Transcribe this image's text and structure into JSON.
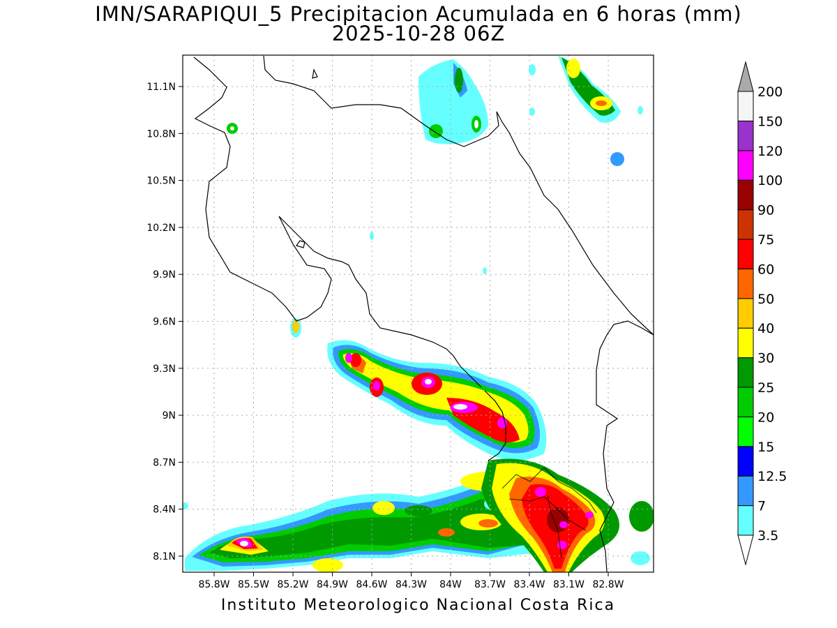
{
  "title": {
    "line1": "IMN/SARAPIQUI_5 Precipitacion Acumulada en 6 horas (mm)",
    "line2": "2025-10-28 06Z"
  },
  "footer": "Instituto Meteorologico Nacional Costa Rica",
  "map": {
    "lat_labels": [
      "11.1N",
      "10.8N",
      "10.5N",
      "10.2N",
      "9.9N",
      "9.6N",
      "9.3N",
      "9N",
      "8.7N",
      "8.4N",
      "8.1N"
    ],
    "lon_labels": [
      "85.8W",
      "85.5W",
      "85.2W",
      "84.9W",
      "84.6W",
      "84.3W",
      "84W",
      "83.7W",
      "83.4W",
      "83.1W",
      "82.8W"
    ]
  },
  "colorbar": {
    "levels": [
      {
        "label": "3.5",
        "color": "#66ffff"
      },
      {
        "label": "7",
        "color": "#3399ff"
      },
      {
        "label": "12.5",
        "color": "#0000ff"
      },
      {
        "label": "15",
        "color": "#00ff00"
      },
      {
        "label": "20",
        "color": "#00cc00"
      },
      {
        "label": "25",
        "color": "#009900"
      },
      {
        "label": "30",
        "color": "#ffff00"
      },
      {
        "label": "40",
        "color": "#ffcc00"
      },
      {
        "label": "50",
        "color": "#ff6600"
      },
      {
        "label": "60",
        "color": "#ff0000"
      },
      {
        "label": "75",
        "color": "#cc3300"
      },
      {
        "label": "90",
        "color": "#990000"
      },
      {
        "label": "100",
        "color": "#ff00ff"
      },
      {
        "label": "120",
        "color": "#9933cc"
      },
      {
        "label": "150",
        "color": "#f5f5f5"
      },
      {
        "label": "200",
        "color": "#aaaaaa"
      }
    ]
  }
}
